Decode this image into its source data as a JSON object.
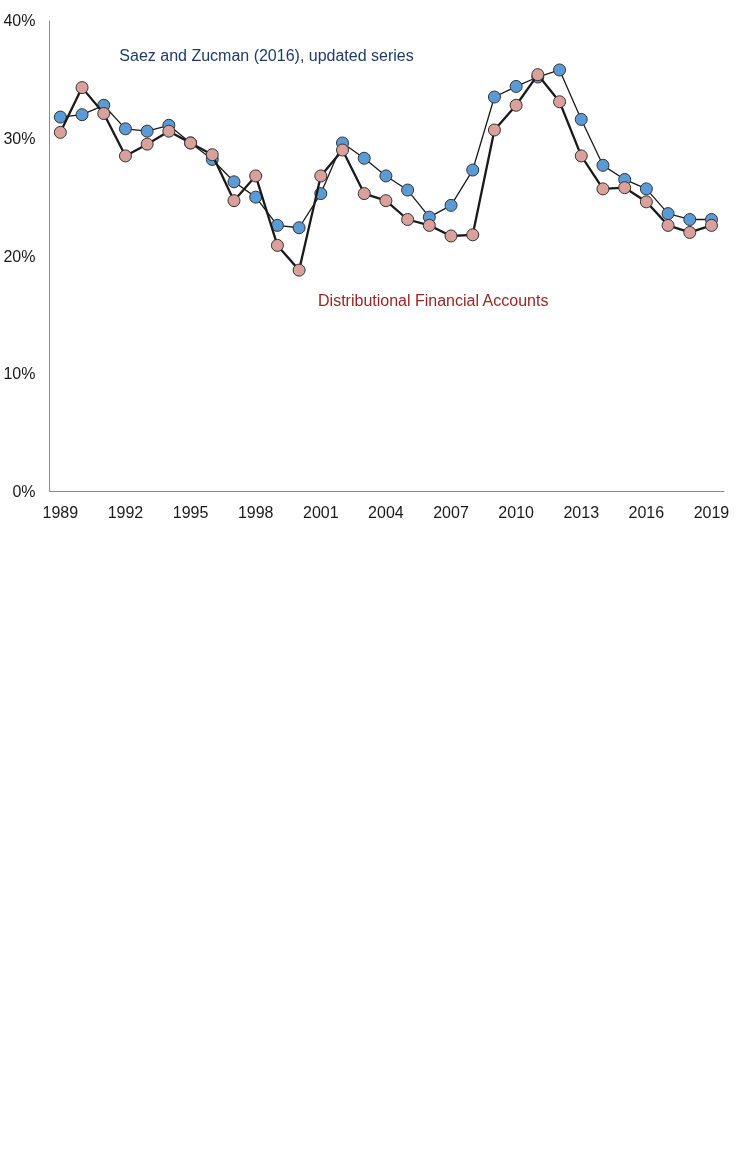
{
  "chart_data": {
    "type": "line",
    "x": [
      1989,
      1990,
      1991,
      1992,
      1993,
      1994,
      1995,
      1996,
      1997,
      1998,
      1999,
      2000,
      2001,
      2002,
      2003,
      2004,
      2005,
      2006,
      2007,
      2008,
      2009,
      2010,
      2011,
      2012,
      2013,
      2014,
      2015,
      2016,
      2017,
      2018,
      2019
    ],
    "series": [
      {
        "name": "Saez and Zucman (2016), updated series",
        "color": "#5b9bd5",
        "values": [
          31.8,
          32.0,
          32.8,
          30.8,
          30.6,
          31.1,
          29.6,
          28.2,
          26.3,
          25.0,
          22.6,
          22.4,
          25.3,
          29.6,
          28.3,
          26.8,
          25.6,
          23.3,
          24.3,
          27.3,
          33.5,
          34.4,
          35.2,
          35.8,
          31.6,
          27.7,
          26.5,
          25.7,
          23.6,
          23.1,
          23.1
        ]
      },
      {
        "name": "Distributional Financial Accounts",
        "color": "#d9a09c",
        "values": [
          30.5,
          34.3,
          32.1,
          28.5,
          29.5,
          30.6,
          29.6,
          28.6,
          24.7,
          26.8,
          20.9,
          18.8,
          26.8,
          29.0,
          25.3,
          24.7,
          23.1,
          22.6,
          21.7,
          21.8,
          30.7,
          32.8,
          35.4,
          33.1,
          28.5,
          25.7,
          25.8,
          24.6,
          22.6,
          22.0,
          22.6
        ]
      }
    ],
    "xlim": [
      1988.5,
      2019.6
    ],
    "xticks": [
      1989,
      1992,
      1995,
      1998,
      2001,
      2004,
      2007,
      2010,
      2013,
      2016,
      2019
    ],
    "ylim": [
      0,
      40
    ],
    "yticks": [
      {
        "value": 0,
        "label": "0%"
      },
      {
        "value": 10,
        "label": "10%"
      },
      {
        "value": 20,
        "label": "20%"
      },
      {
        "value": 30,
        "label": "30%"
      },
      {
        "value": 40,
        "label": "40%"
      }
    ],
    "marker": "circle",
    "line_style": "solid"
  }
}
